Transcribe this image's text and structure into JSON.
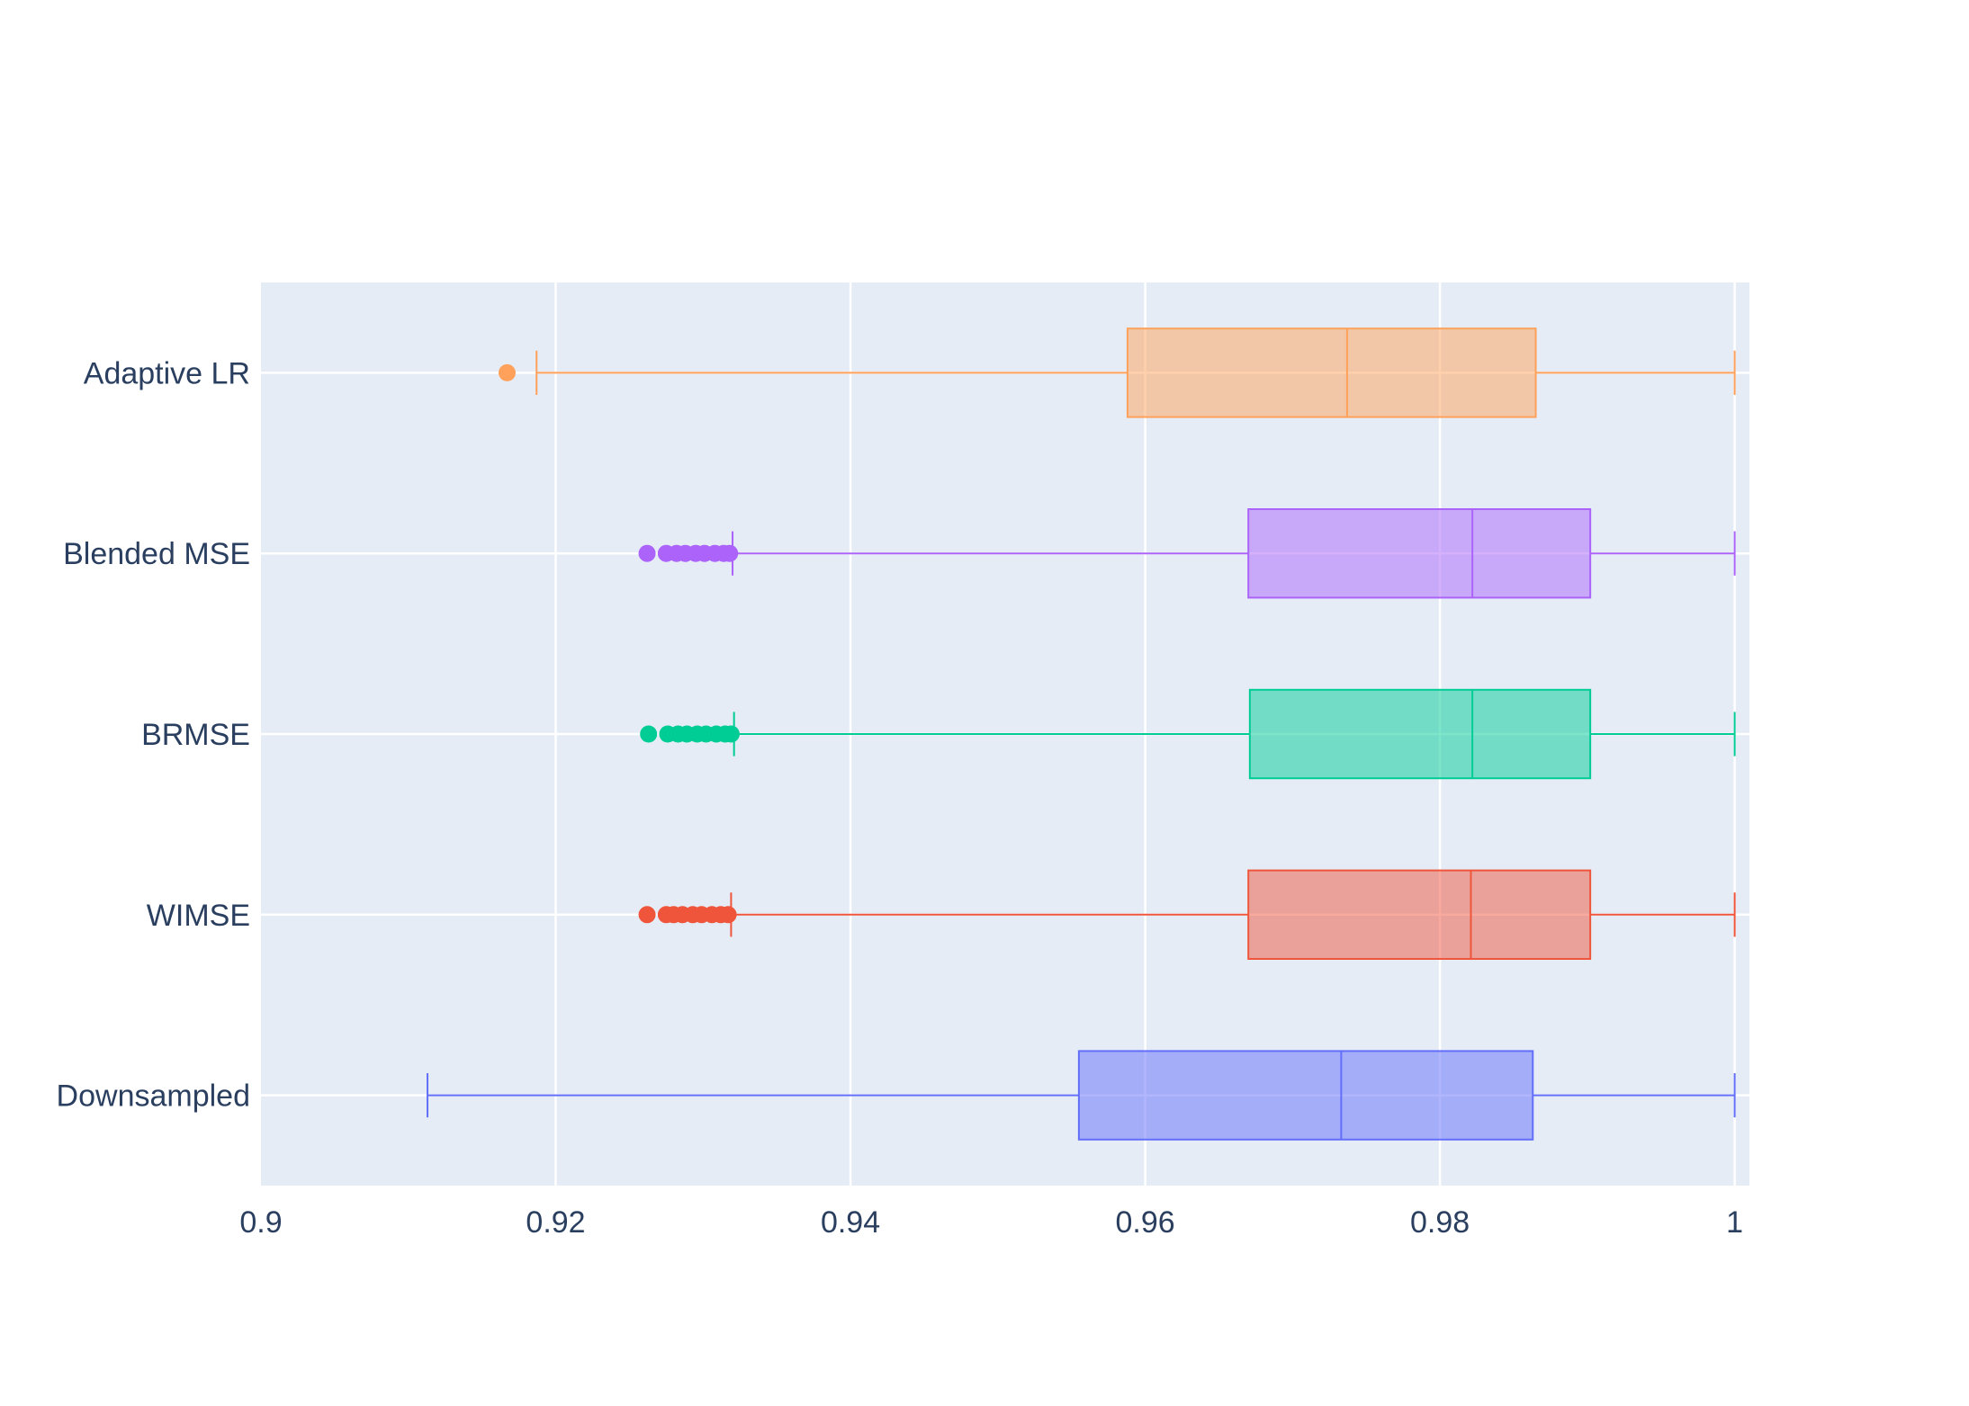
{
  "chart_data": {
    "type": "box",
    "orientation": "horizontal",
    "title": "",
    "xlabel": "",
    "ylabel": "",
    "xlim": [
      0.9,
      1.001
    ],
    "x_ticks": [
      0.9,
      0.92,
      0.94,
      0.96,
      0.98,
      1
    ],
    "x_tick_labels": [
      "0.9",
      "0.92",
      "0.94",
      "0.96",
      "0.98",
      "1"
    ],
    "grid": true,
    "background": "#e5ecf6",
    "series": [
      {
        "category": "Adaptive LR",
        "color": "#ffa15a",
        "whisker_low": 0.9187,
        "q1": 0.9588,
        "median": 0.9737,
        "q3": 0.9865,
        "whisker_high": 1.0,
        "outliers": [
          0.9167
        ]
      },
      {
        "category": "Blended MSE",
        "color": "#ab63fa",
        "whisker_low": 0.932,
        "q1": 0.967,
        "median": 0.9822,
        "q3": 0.9902,
        "whisker_high": 1.0,
        "outliers": [
          0.9262,
          0.9275,
          0.9282,
          0.9288,
          0.9295,
          0.9301,
          0.9308,
          0.9314,
          0.9318
        ]
      },
      {
        "category": "BRMSE",
        "color": "#00cc96",
        "whisker_low": 0.9321,
        "q1": 0.9671,
        "median": 0.9822,
        "q3": 0.9902,
        "whisker_high": 1.0,
        "outliers": [
          0.9263,
          0.9276,
          0.9283,
          0.9289,
          0.9296,
          0.9302,
          0.9309,
          0.9315,
          0.9319
        ]
      },
      {
        "category": "WIMSE",
        "color": "#ef553b",
        "whisker_low": 0.9319,
        "q1": 0.967,
        "median": 0.9821,
        "q3": 0.9902,
        "whisker_high": 1.0,
        "outliers": [
          0.9262,
          0.9275,
          0.928,
          0.9286,
          0.9293,
          0.9299,
          0.9306,
          0.9312,
          0.9317
        ]
      },
      {
        "category": "Downsampled",
        "color": "#636efa",
        "whisker_low": 0.9113,
        "q1": 0.9555,
        "median": 0.9733,
        "q3": 0.9863,
        "whisker_high": 1.0,
        "outliers": []
      }
    ]
  }
}
